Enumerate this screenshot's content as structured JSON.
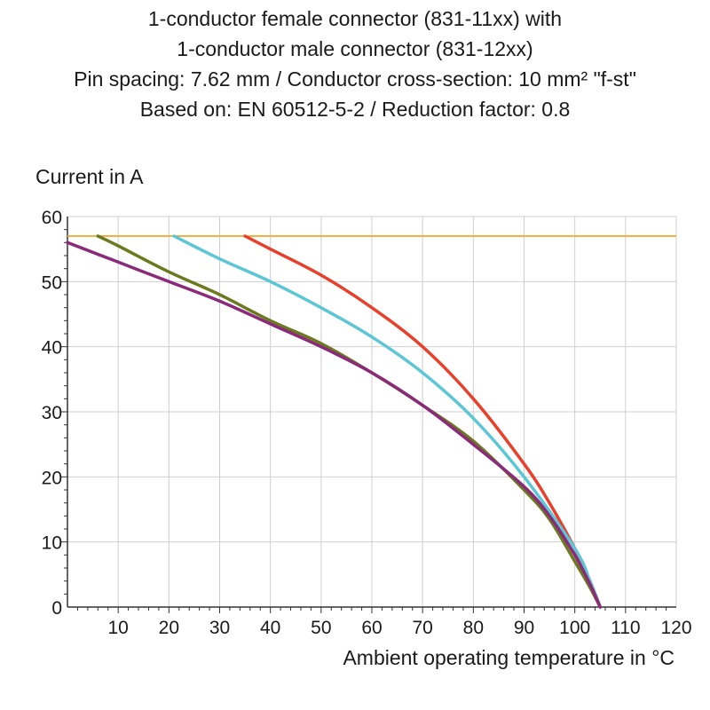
{
  "title_lines": [
    "1-conductor female connector (831-11xx) with",
    "1-conductor male connector (831-12xx)",
    "Pin spacing: 7.62 mm / Conductor cross-section: 10 mm² \"f-st\"",
    "Based on: EN 60512-5-2 / Reduction factor: 0.8"
  ],
  "chart_data": {
    "type": "line",
    "title": "1-conductor female connector (831-11xx) with 1-conductor male connector (831-12xx)",
    "subtitle": "Pin spacing: 7.62 mm / Conductor cross-section: 10 mm² \"f-st\" / Based on: EN 60512-5-2 / Reduction factor: 0.8",
    "xlabel": "Ambient operating temperature in °C",
    "ylabel": "Current in A",
    "xlim": [
      0,
      120
    ],
    "ylim": [
      0,
      60
    ],
    "x_ticks": [
      10,
      20,
      30,
      40,
      50,
      60,
      70,
      80,
      90,
      100,
      110,
      120
    ],
    "y_ticks": [
      0,
      10,
      20,
      30,
      40,
      50,
      60
    ],
    "grid": true,
    "limit_line": {
      "y": 57,
      "color": "#f5b041"
    },
    "series": [
      {
        "color": "#e8402a",
        "points": [
          [
            35,
            57
          ],
          [
            40,
            55
          ],
          [
            50,
            51
          ],
          [
            60,
            46
          ],
          [
            70,
            40
          ],
          [
            80,
            32
          ],
          [
            90,
            22
          ],
          [
            95,
            16
          ],
          [
            100,
            9
          ],
          [
            103,
            4
          ],
          [
            105,
            0
          ]
        ]
      },
      {
        "color": "#5bc6d6",
        "points": [
          [
            21,
            57
          ],
          [
            30,
            53.5
          ],
          [
            40,
            50
          ],
          [
            50,
            46
          ],
          [
            60,
            41.5
          ],
          [
            70,
            36
          ],
          [
            80,
            29
          ],
          [
            90,
            20
          ],
          [
            100,
            9
          ],
          [
            103,
            4
          ],
          [
            105,
            0
          ]
        ]
      },
      {
        "color": "#6b7a1e",
        "points": [
          [
            6,
            57
          ],
          [
            10,
            55.5
          ],
          [
            20,
            51.5
          ],
          [
            30,
            48
          ],
          [
            40,
            44
          ],
          [
            50,
            40.5
          ],
          [
            60,
            36
          ],
          [
            70,
            31
          ],
          [
            80,
            25.5
          ],
          [
            90,
            18
          ],
          [
            95,
            13.5
          ],
          [
            100,
            7
          ],
          [
            103,
            3
          ],
          [
            105,
            0
          ]
        ]
      },
      {
        "color": "#8b2a7a",
        "points": [
          [
            0,
            56
          ],
          [
            10,
            53
          ],
          [
            20,
            50
          ],
          [
            30,
            47
          ],
          [
            40,
            43.5
          ],
          [
            50,
            40
          ],
          [
            60,
            36
          ],
          [
            70,
            31
          ],
          [
            80,
            25
          ],
          [
            90,
            18.5
          ],
          [
            95,
            14
          ],
          [
            100,
            8
          ],
          [
            103,
            3.5
          ],
          [
            105,
            0
          ]
        ]
      }
    ]
  }
}
